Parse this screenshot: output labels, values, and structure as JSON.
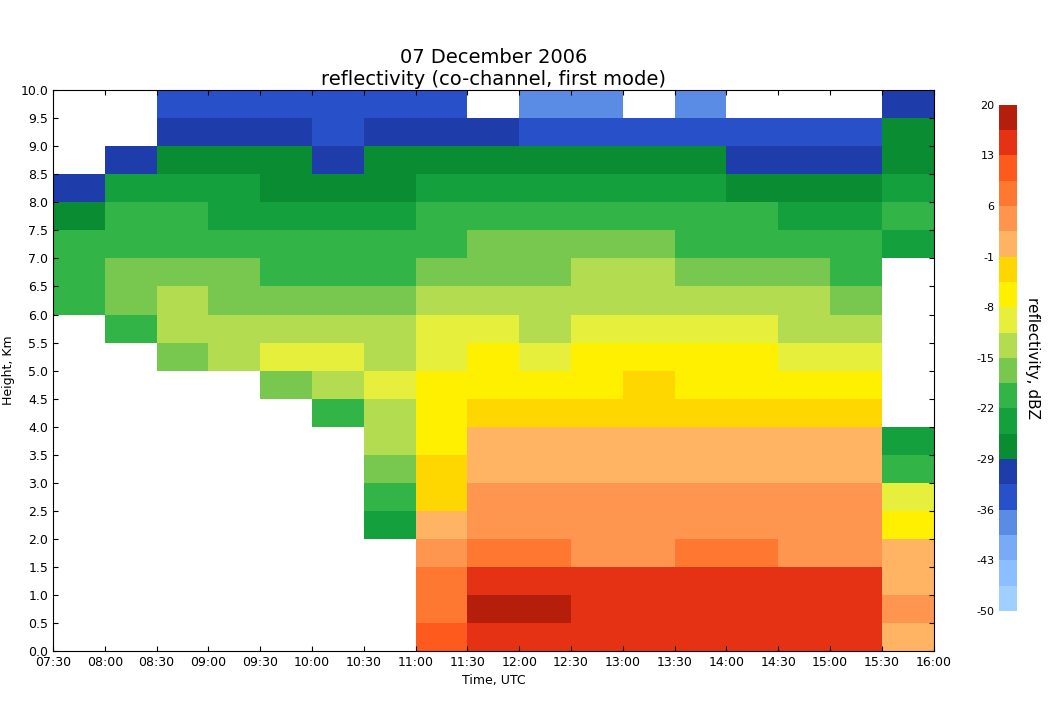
{
  "chart_data": {
    "type": "heatmap",
    "title": "07 December 2006\nreflectivity (co-channel, first mode)",
    "x_label": "Time, UTC",
    "y_label": "Height, Km",
    "xlim": [
      7.5,
      16.0
    ],
    "ylim": [
      0.0,
      10.0
    ],
    "xticks": [
      {
        "value": 7.5,
        "label": "07:30"
      },
      {
        "value": 8.0,
        "label": "08:00"
      },
      {
        "value": 8.5,
        "label": "08:30"
      },
      {
        "value": 9.0,
        "label": "09:00"
      },
      {
        "value": 9.5,
        "label": "09:30"
      },
      {
        "value": 10.0,
        "label": "10:00"
      },
      {
        "value": 10.5,
        "label": "10:30"
      },
      {
        "value": 11.0,
        "label": "11:00"
      },
      {
        "value": 11.5,
        "label": "11:30"
      },
      {
        "value": 12.0,
        "label": "12:00"
      },
      {
        "value": 12.5,
        "label": "12:30"
      },
      {
        "value": 13.0,
        "label": "13:00"
      },
      {
        "value": 13.5,
        "label": "13:30"
      },
      {
        "value": 14.0,
        "label": "14:00"
      },
      {
        "value": 14.5,
        "label": "14:30"
      },
      {
        "value": 15.0,
        "label": "15:00"
      },
      {
        "value": 15.5,
        "label": "15:30"
      },
      {
        "value": 16.0,
        "label": "16:00"
      }
    ],
    "yticks": [
      {
        "value": 0.0,
        "label": "0.0"
      },
      {
        "value": 0.5,
        "label": "0.5"
      },
      {
        "value": 1.0,
        "label": "1.0"
      },
      {
        "value": 1.5,
        "label": "1.5"
      },
      {
        "value": 2.0,
        "label": "2.0"
      },
      {
        "value": 2.5,
        "label": "2.5"
      },
      {
        "value": 3.0,
        "label": "3.0"
      },
      {
        "value": 3.5,
        "label": "3.5"
      },
      {
        "value": 4.0,
        "label": "4.0"
      },
      {
        "value": 4.5,
        "label": "4.5"
      },
      {
        "value": 5.0,
        "label": "5.0"
      },
      {
        "value": 5.5,
        "label": "5.5"
      },
      {
        "value": 6.0,
        "label": "6.0"
      },
      {
        "value": 6.5,
        "label": "6.5"
      },
      {
        "value": 7.0,
        "label": "7.0"
      },
      {
        "value": 7.5,
        "label": "7.5"
      },
      {
        "value": 8.0,
        "label": "8.0"
      },
      {
        "value": 8.5,
        "label": "8.5"
      },
      {
        "value": 9.0,
        "label": "9.0"
      },
      {
        "value": 9.5,
        "label": "9.5"
      },
      {
        "value": 10.0,
        "label": "10.0"
      }
    ],
    "grid": false,
    "x_edges": [
      7.5,
      8.0,
      8.5,
      9.0,
      9.5,
      10.0,
      10.5,
      11.0,
      11.5,
      12.0,
      12.5,
      13.0,
      13.5,
      14.0,
      14.5,
      15.0,
      15.5,
      16.0
    ],
    "y_edges": [
      0.0,
      0.5,
      1.0,
      1.5,
      2.0,
      2.5,
      3.0,
      3.5,
      4.0,
      4.5,
      5.0,
      5.5,
      6.0,
      6.5,
      7.0,
      7.5,
      8.0,
      8.5,
      9.0,
      9.5,
      10.0
    ],
    "cells": [
      [
        null,
        null,
        null,
        null,
        null,
        null,
        null,
        10,
        14,
        14,
        14,
        14,
        14,
        14,
        14,
        14,
        2
      ],
      [
        null,
        null,
        null,
        null,
        null,
        null,
        null,
        8,
        17,
        17,
        16,
        16,
        16,
        16,
        16,
        15,
        3
      ],
      [
        null,
        null,
        null,
        null,
        null,
        null,
        null,
        6,
        16,
        16,
        16,
        15,
        15,
        15,
        15,
        15,
        2
      ],
      [
        null,
        null,
        null,
        null,
        null,
        null,
        null,
        3,
        6,
        6,
        5,
        5,
        6,
        6,
        5,
        5,
        0
      ],
      [
        null,
        null,
        null,
        null,
        null,
        null,
        -25,
        0,
        4,
        4,
        4,
        4,
        4,
        4,
        4,
        4,
        -5
      ],
      [
        null,
        null,
        null,
        null,
        null,
        null,
        -22,
        -3,
        3,
        3,
        3,
        3,
        3,
        3,
        3,
        3,
        -10
      ],
      [
        null,
        null,
        null,
        null,
        null,
        null,
        -18,
        -4,
        2,
        2,
        2,
        2,
        2,
        2,
        2,
        1,
        -20
      ],
      [
        null,
        null,
        null,
        null,
        null,
        null,
        -15,
        -5,
        0,
        1,
        0,
        1,
        1,
        0,
        0,
        0,
        -25
      ],
      [
        null,
        null,
        null,
        null,
        null,
        -20,
        -12,
        -6,
        -2,
        -2,
        -3,
        -2,
        -2,
        -3,
        -3,
        -3,
        null
      ],
      [
        null,
        null,
        null,
        null,
        -18,
        -14,
        -10,
        -8,
        -5,
        -5,
        -5,
        -4,
        -5,
        -5,
        -6,
        -6,
        null
      ],
      [
        null,
        null,
        -18,
        -12,
        -11,
        -11,
        -12,
        -9,
        -8,
        -9,
        -8,
        -7,
        -8,
        -8,
        -9,
        -9,
        null
      ],
      [
        null,
        -22,
        -14,
        -13,
        -13,
        -13,
        -14,
        -11,
        -11,
        -12,
        -10,
        -10,
        -11,
        -11,
        -12,
        -12,
        null
      ],
      [
        -22,
        -18,
        -15,
        -16,
        -16,
        -16,
        -17,
        -14,
        -13,
        -14,
        -13,
        -12,
        -13,
        -14,
        -15,
        -16,
        null
      ],
      [
        -20,
        -18,
        -18,
        -18,
        -19,
        -19,
        -20,
        -17,
        -16,
        -16,
        -15,
        -15,
        -16,
        -17,
        -18,
        -20,
        null
      ],
      [
        -22,
        -20,
        -20,
        -21,
        -22,
        -22,
        -22,
        -20,
        -18,
        -18,
        -18,
        -18,
        -19,
        -20,
        -21,
        -22,
        -25
      ],
      [
        -26,
        -22,
        -22,
        -23,
        -24,
        -25,
        -24,
        -22,
        -20,
        -21,
        -21,
        -21,
        -22,
        -22,
        -23,
        -24,
        -22
      ],
      [
        -30,
        -25,
        -25,
        -25,
        -26,
        -27,
        -26,
        -24,
        -24,
        -24,
        -25,
        -25,
        -25,
        -26,
        -27,
        -28,
        -24
      ],
      [
        null,
        -30,
        -27,
        -27,
        -28,
        -30,
        -28,
        -27,
        -28,
        -28,
        -29,
        -29,
        -28,
        -30,
        -30,
        -32,
        -26
      ],
      [
        null,
        null,
        -32,
        -30,
        -30,
        -33,
        -30,
        -30,
        -32,
        -33,
        -34,
        -33,
        -33,
        -35,
        -34,
        -36,
        -28
      ],
      [
        null,
        null,
        -36,
        -33,
        -33,
        -36,
        -34,
        -34,
        null,
        -38,
        -38,
        null,
        -38,
        null,
        null,
        null,
        -32
      ]
    ],
    "colorbar": {
      "label": "reflectivity, dBZ",
      "lim": [
        -50,
        20
      ],
      "ticks": [
        20,
        13,
        6,
        -1,
        -8,
        -15,
        -22,
        -29,
        -36,
        -43,
        -50
      ],
      "colors": [
        "#a0d0ff",
        "#8cbfff",
        "#78aaf5",
        "#5a8ce6",
        "#2850c8",
        "#1e3caa",
        "#0a8c32",
        "#14a03c",
        "#32b446",
        "#78c850",
        "#b4dc50",
        "#e6f03c",
        "#fff000",
        "#ffd700",
        "#ffb464",
        "#ff9650",
        "#ff7832",
        "#ff5a1e",
        "#e63214",
        "#b41e0a"
      ]
    }
  }
}
